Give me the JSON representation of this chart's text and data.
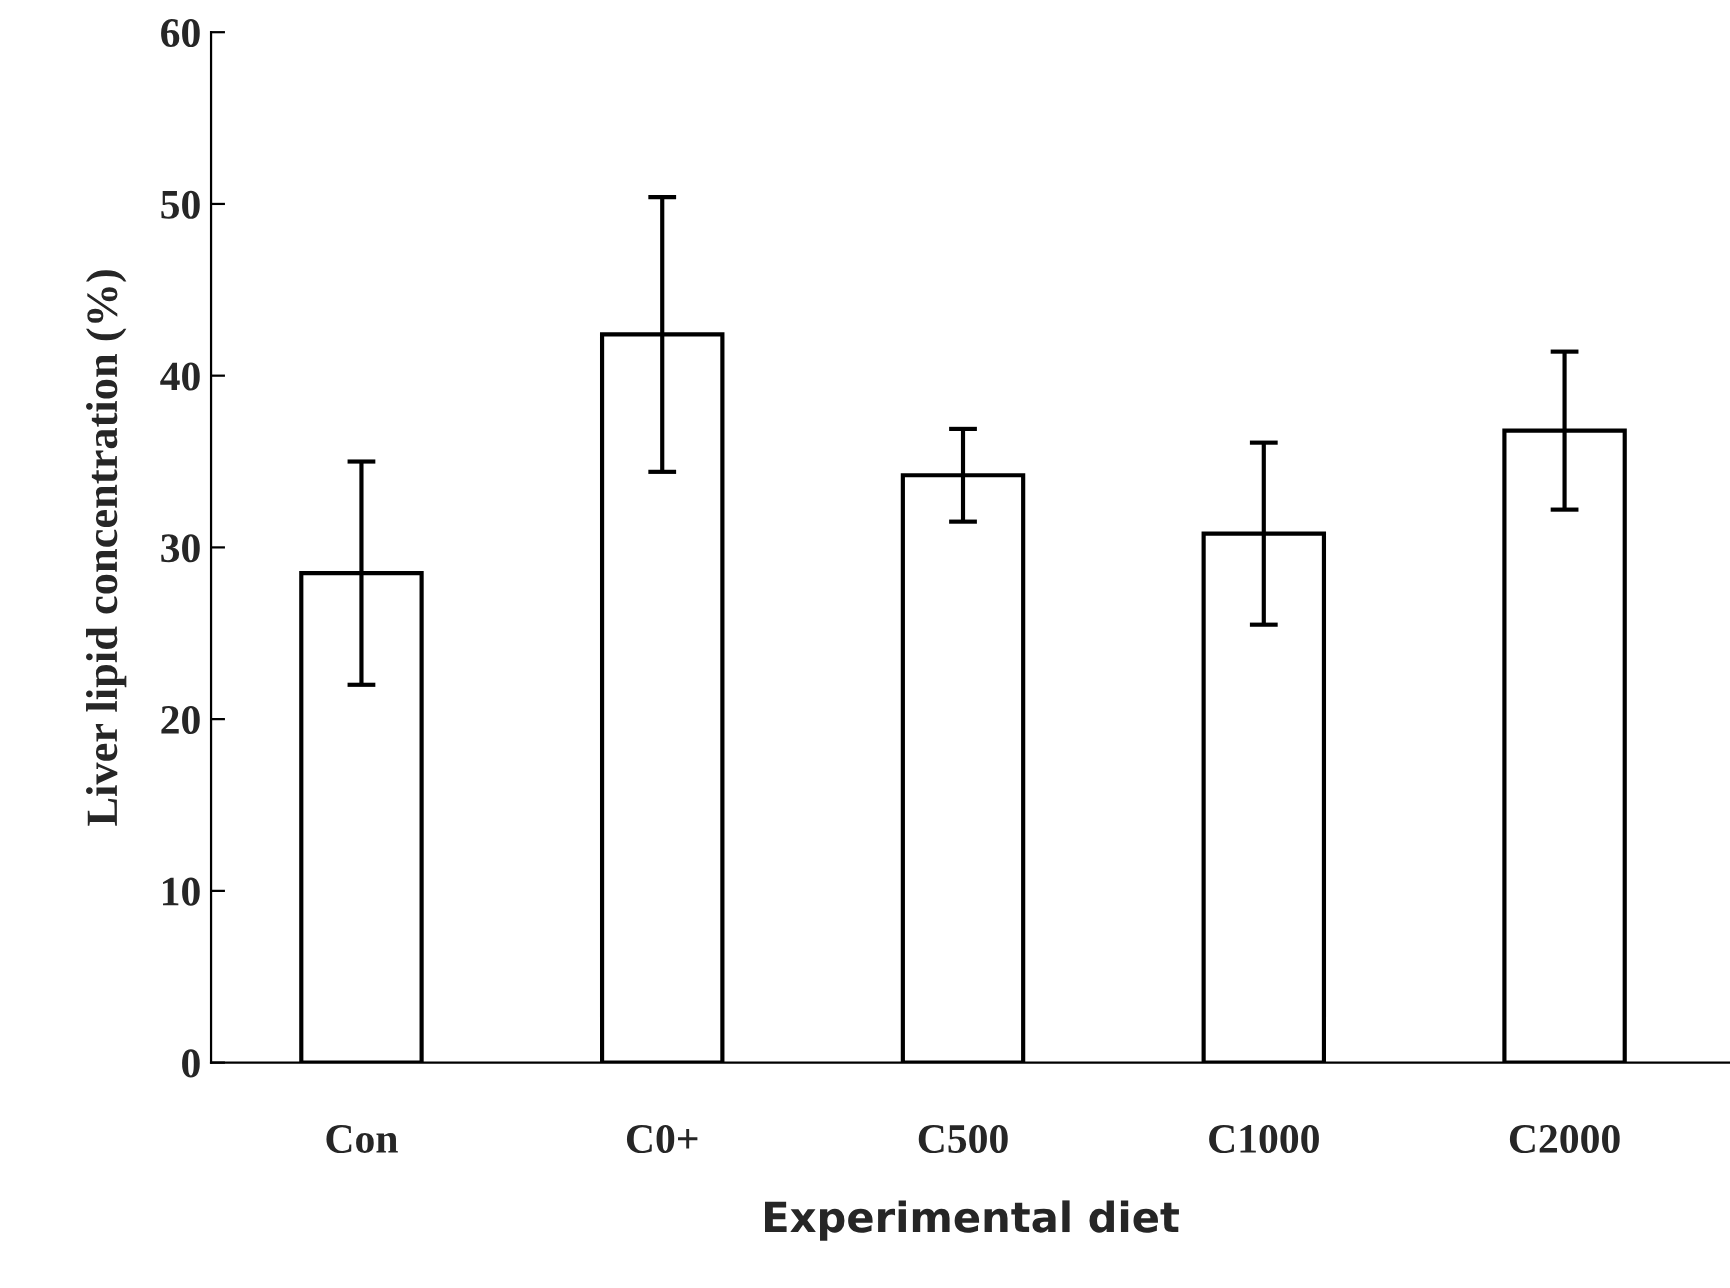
{
  "chart_data": {
    "type": "bar",
    "xlabel": "Experimental diet",
    "ylabel": "Liver lipid concentration (%)",
    "categories": [
      "Con",
      "C0+",
      "C500",
      "C1000",
      "C2000"
    ],
    "values": [
      28.5,
      42.4,
      34.2,
      30.8,
      36.8
    ],
    "errors": [
      6.5,
      8.0,
      2.7,
      5.3,
      4.6
    ],
    "color": "#ffffff",
    "ylim": [
      0,
      60
    ],
    "yticks": [
      0,
      10,
      20,
      30,
      40,
      50,
      60
    ],
    "grid": false,
    "legend": false
  }
}
